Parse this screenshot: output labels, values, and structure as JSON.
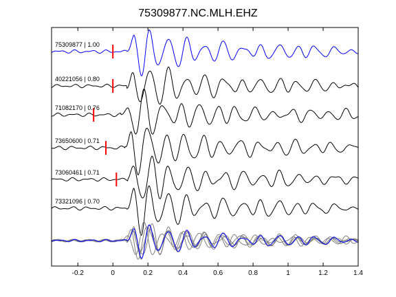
{
  "title": "75309877.NC.MLH.EHZ",
  "colors": {
    "reference_trace": "#0000ff",
    "trace": "#000000",
    "overlay_trace": "#808080",
    "pick_marker": "#ff0000",
    "axis": "#000000"
  },
  "chart_data": {
    "type": "line",
    "title": "75309877.NC.MLH.EHZ",
    "xlabel": "",
    "ylabel": "",
    "xlim": [
      -0.35,
      1.4
    ],
    "xticks": [
      -0.2,
      0,
      0.2,
      0.4,
      0.6,
      0.8,
      1,
      1.2,
      1.4
    ],
    "xtick_labels": [
      "-0.2",
      "0",
      "0.2",
      "0.4",
      "0.6",
      "0.8",
      "1",
      "1.2",
      "1.4"
    ],
    "grid": false,
    "legend": "none",
    "traces": [
      {
        "label": "75309877 | 1.00",
        "event_id": "75309877",
        "correlation": 1.0,
        "pick_time": 0.0,
        "color": "#0000ff",
        "amplitude": 1.0
      },
      {
        "label": "40221056 | 0.80",
        "event_id": "40221056",
        "correlation": 0.8,
        "pick_time": 0.0,
        "color": "#000000",
        "amplitude": 1.0
      },
      {
        "label": "71082170 | 0.76",
        "event_id": "71082170",
        "correlation": 0.76,
        "pick_time": -0.11,
        "color": "#000000",
        "amplitude": 1.0
      },
      {
        "label": "73650600 | 0.71",
        "event_id": "73650600",
        "correlation": 0.71,
        "pick_time": -0.04,
        "color": "#000000",
        "amplitude": 1.05
      },
      {
        "label": "73060461 | 0.71",
        "event_id": "73060461",
        "correlation": 0.71,
        "pick_time": 0.02,
        "color": "#000000",
        "amplitude": 1.0
      },
      {
        "label": "73321096 | 0.70",
        "event_id": "73321096",
        "correlation": 0.7,
        "pick_time": null,
        "color": "#000000",
        "amplitude": 1.05
      }
    ],
    "stack": {
      "description_of_content": "overlay of all traces",
      "series_colors": [
        "#0000ff",
        "#808080",
        "#808080",
        "#808080",
        "#808080",
        "#808080"
      ]
    }
  }
}
